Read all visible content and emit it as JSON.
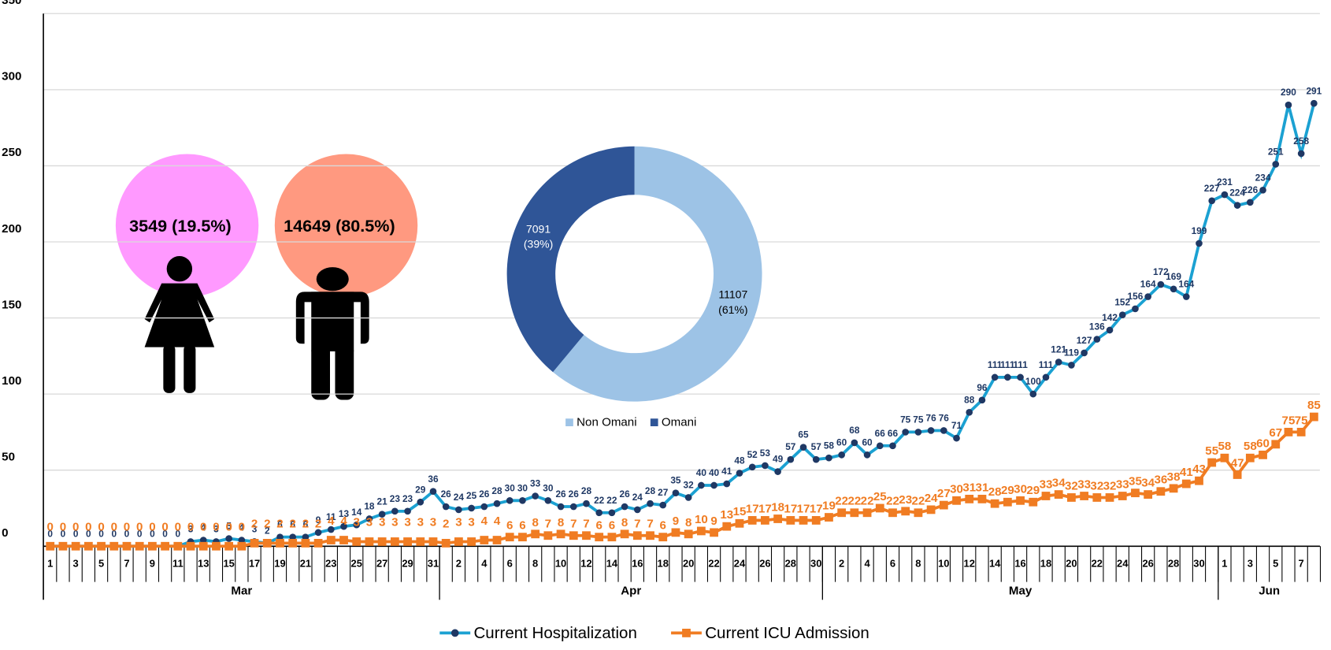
{
  "chart_data": {
    "type": "line",
    "ylim": [
      0,
      350
    ],
    "yticks": [
      0,
      50,
      100,
      150,
      200,
      250,
      300,
      350
    ],
    "grid": true,
    "months": [
      {
        "name": "Mar",
        "days": [
          "1",
          null,
          "3",
          null,
          "5",
          null,
          "7",
          null,
          "9",
          null,
          "11",
          null,
          "13",
          null,
          "15",
          null,
          "17",
          null,
          "19",
          null,
          "21",
          null,
          "23",
          null,
          "25",
          null,
          "27",
          null,
          "29",
          null,
          "31"
        ]
      },
      {
        "name": "Apr",
        "days": [
          null,
          "2",
          null,
          "4",
          null,
          "6",
          null,
          "8",
          null,
          "10",
          null,
          "12",
          null,
          "14",
          null,
          "16",
          null,
          "18",
          null,
          "20",
          null,
          "22",
          null,
          "24",
          null,
          "26",
          null,
          "28",
          null,
          "30"
        ]
      },
      {
        "name": "May",
        "days": [
          null,
          "2",
          null,
          "4",
          null,
          "6",
          null,
          "8",
          null,
          "10",
          null,
          "12",
          null,
          "14",
          null,
          "16",
          null,
          "18",
          null,
          "20",
          null,
          "22",
          null,
          "24",
          null,
          "26",
          null,
          "28",
          null,
          "30",
          null
        ]
      },
      {
        "name": "Jun",
        "days": [
          "1",
          null,
          "3",
          null,
          "5",
          null,
          "7",
          null
        ]
      }
    ],
    "series": [
      {
        "name": "Current Hospitalization",
        "color": "#1ba1d2",
        "marker": "circle",
        "label_color": "#1f3864",
        "values": [
          0,
          0,
          0,
          0,
          0,
          0,
          0,
          0,
          0,
          0,
          0,
          3,
          4,
          3,
          5,
          4,
          3,
          2,
          6,
          6,
          6,
          9,
          11,
          13,
          14,
          18,
          21,
          23,
          23,
          29,
          36,
          26,
          24,
          25,
          26,
          28,
          30,
          30,
          33,
          30,
          26,
          26,
          28,
          22,
          22,
          26,
          24,
          28,
          27,
          35,
          32,
          40,
          40,
          41,
          48,
          52,
          53,
          49,
          57,
          65,
          57,
          58,
          60,
          68,
          60,
          66,
          66,
          75,
          75,
          76,
          76,
          71,
          88,
          96,
          111,
          111,
          111,
          100,
          111,
          121,
          119,
          127,
          136,
          142,
          152,
          156,
          164,
          172,
          169,
          164,
          199,
          227,
          231,
          224,
          226,
          234,
          251,
          290,
          258,
          291
        ]
      },
      {
        "name": "Current ICU Admission",
        "color": "#f07c22",
        "marker": "square",
        "label_color": "#f07c22",
        "values": [
          0,
          0,
          0,
          0,
          0,
          0,
          0,
          0,
          0,
          0,
          0,
          0,
          0,
          0,
          0,
          0,
          2,
          2,
          2,
          2,
          2,
          2,
          4,
          4,
          3,
          3,
          3,
          3,
          3,
          3,
          3,
          2,
          3,
          3,
          4,
          4,
          6,
          6,
          8,
          7,
          8,
          7,
          7,
          6,
          6,
          8,
          7,
          7,
          6,
          9,
          8,
          10,
          9,
          13,
          15,
          17,
          17,
          18,
          17,
          17,
          17,
          19,
          22,
          22,
          22,
          25,
          22,
          23,
          22,
          24,
          27,
          30,
          31,
          31,
          28,
          29,
          30,
          29,
          33,
          34,
          32,
          33,
          32,
          32,
          33,
          35,
          34,
          36,
          38,
          41,
          43,
          55,
          58,
          47,
          58,
          60,
          67,
          75,
          75,
          85
        ]
      }
    ],
    "pie": {
      "categories": [
        "Non Omani",
        "Omani"
      ],
      "values": [
        11107,
        7091
      ],
      "percent_labels": [
        "(61%)",
        "(39%)"
      ],
      "colors": [
        "#9dc3e6",
        "#2f5597"
      ]
    },
    "gender": [
      {
        "label": "3549 (19.5%)",
        "color": "#ff99ff"
      },
      {
        "label": "14649 (80.5%)",
        "color": "#ff9980"
      }
    ]
  }
}
